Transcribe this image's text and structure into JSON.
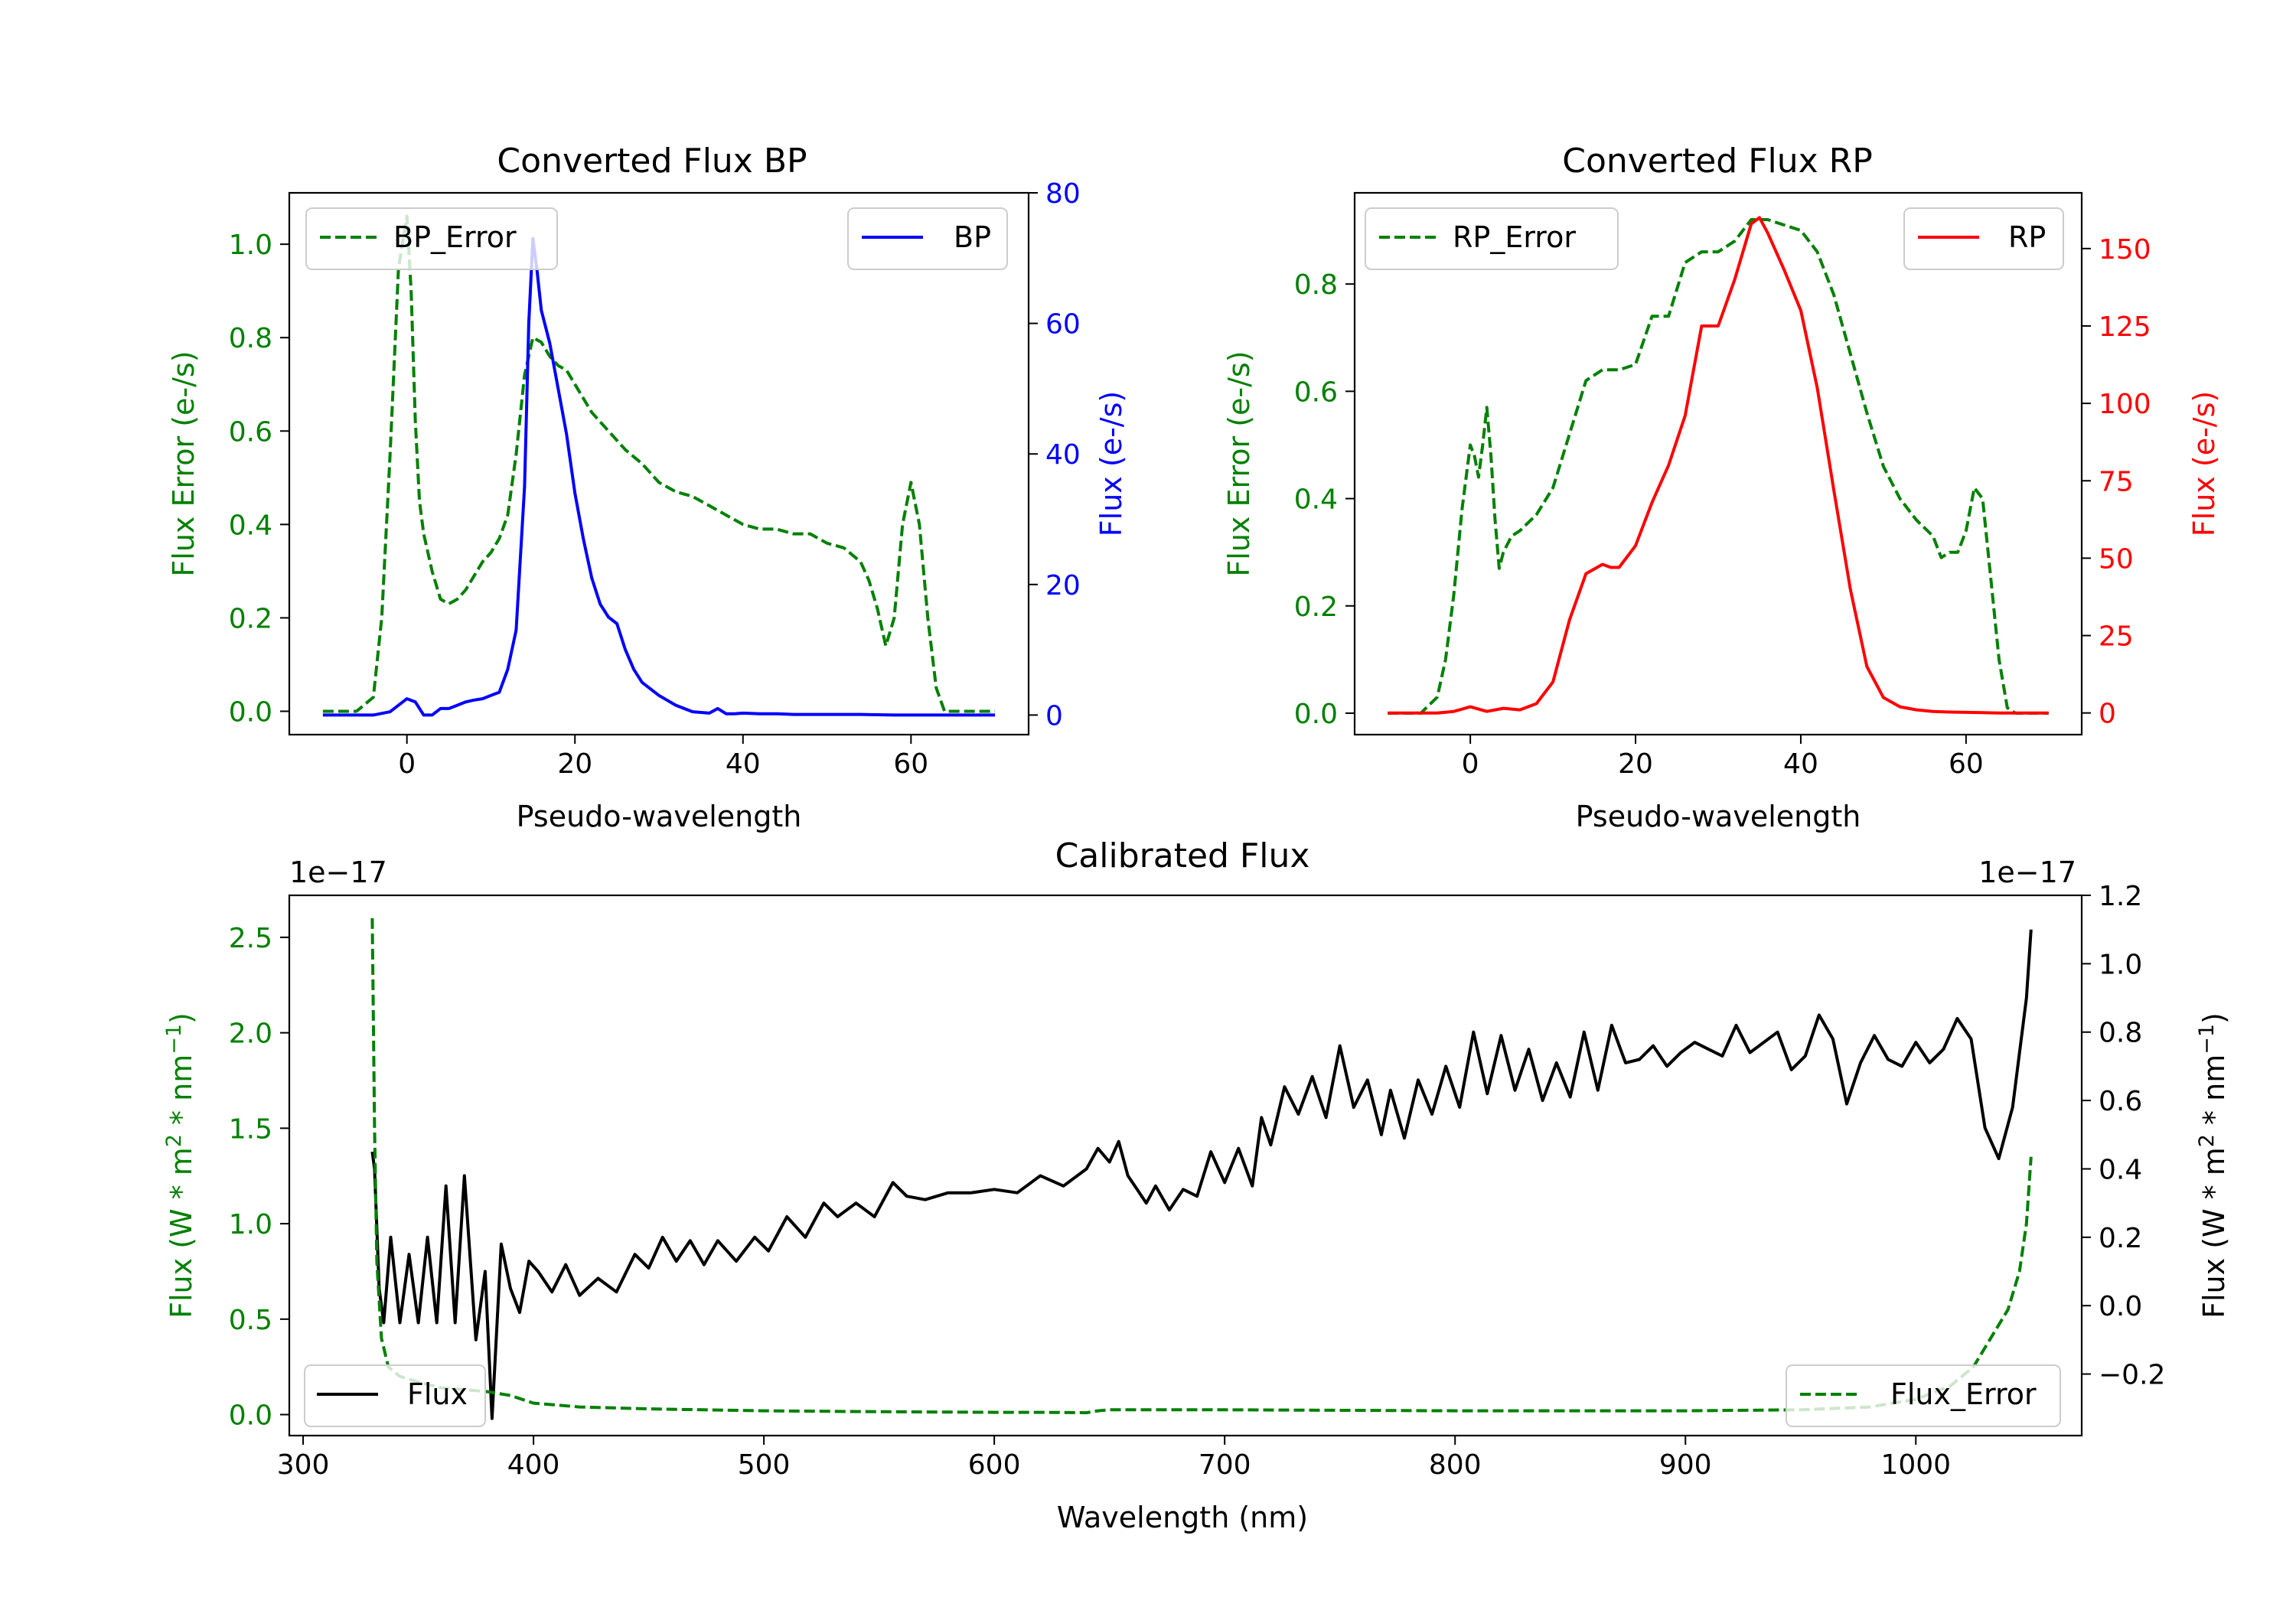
{
  "colors": {
    "green": "#008000",
    "blue": "#0000ff",
    "red": "#ff0000",
    "black": "#000000"
  },
  "chart_data": [
    {
      "id": "bp",
      "type": "line",
      "title": "Converted Flux BP",
      "xlabel": "Pseudo-wavelength",
      "ylabel_left": "Flux Error (e-/s)",
      "ylabel_right": "Flux (e-/s)",
      "xlim": [
        -14,
        74
      ],
      "ylim_left": [
        -0.05,
        1.11
      ],
      "ylim_right": [
        -3,
        80
      ],
      "xticks": [
        0,
        20,
        40,
        60
      ],
      "yticks_left": [
        0.0,
        0.2,
        0.4,
        0.6,
        0.8,
        1.0
      ],
      "ytick_labels_left": [
        "0.0",
        "0.2",
        "0.4",
        "0.6",
        "0.8",
        "1.0"
      ],
      "yticks_right": [
        0,
        20,
        40,
        60,
        80
      ],
      "ytick_labels_right": [
        "0",
        "20",
        "40",
        "60",
        "80"
      ],
      "legend_left_position": "upper-left",
      "legend_right_position": "upper-right",
      "series": [
        {
          "name": "BP_Error",
          "axis": "left",
          "style": "dashed",
          "color": "#008000",
          "x": [
            -10,
            -6,
            -4,
            -3,
            -2,
            -1,
            0,
            0.5,
            1,
            1.5,
            2,
            3,
            4,
            5,
            6,
            7,
            8,
            9,
            10,
            11,
            12,
            13,
            14,
            15,
            16,
            17,
            18,
            19,
            20,
            22,
            24,
            26,
            28,
            30,
            32,
            34,
            36,
            38,
            40,
            42,
            44,
            46,
            48,
            50,
            52,
            54,
            55,
            56,
            57,
            58,
            59,
            60,
            61,
            62,
            63,
            64,
            65,
            66,
            67,
            68,
            69,
            70
          ],
          "y": [
            0,
            0,
            0.03,
            0.2,
            0.55,
            0.95,
            1.06,
            0.9,
            0.62,
            0.45,
            0.38,
            0.3,
            0.24,
            0.23,
            0.24,
            0.26,
            0.29,
            0.32,
            0.34,
            0.37,
            0.42,
            0.55,
            0.72,
            0.8,
            0.79,
            0.76,
            0.74,
            0.73,
            0.7,
            0.64,
            0.6,
            0.56,
            0.53,
            0.49,
            0.47,
            0.46,
            0.44,
            0.42,
            0.4,
            0.39,
            0.39,
            0.38,
            0.38,
            0.36,
            0.35,
            0.32,
            0.28,
            0.22,
            0.14,
            0.2,
            0.4,
            0.49,
            0.4,
            0.2,
            0.05,
            0,
            0,
            0,
            0,
            0,
            0,
            0
          ]
        },
        {
          "name": "BP",
          "axis": "right",
          "style": "solid",
          "color": "#0000ff",
          "x": [
            -10,
            -8,
            -6,
            -4,
            -2,
            -1,
            0,
            1,
            2,
            3,
            4,
            5,
            6,
            7,
            8,
            9,
            10,
            11,
            12,
            13,
            14,
            14.5,
            15,
            15.5,
            16,
            17,
            18,
            19,
            20,
            21,
            22,
            23,
            24,
            25,
            26,
            27,
            28,
            29,
            30,
            32,
            34,
            36,
            37,
            38,
            39,
            40,
            42,
            44,
            46,
            48,
            50,
            52,
            54,
            56,
            58,
            60,
            62,
            64,
            66,
            68,
            70
          ],
          "y": [
            0,
            0,
            0,
            0,
            0.5,
            1.5,
            2.5,
            2,
            0,
            0,
            1,
            1,
            1.5,
            2,
            2.3,
            2.5,
            3,
            3.5,
            7,
            13,
            35,
            60,
            73,
            68,
            62,
            57,
            50,
            43,
            34,
            27,
            21,
            17,
            15,
            14,
            10,
            7,
            5,
            4,
            3,
            1.5,
            0.5,
            0.3,
            1,
            0.2,
            0.2,
            0.3,
            0.2,
            0.2,
            0.1,
            0.1,
            0.1,
            0.1,
            0.1,
            0.05,
            0,
            0,
            0,
            0,
            0,
            0,
            0
          ]
        }
      ]
    },
    {
      "id": "rp",
      "type": "line",
      "title": "Converted Flux RP",
      "xlabel": "Pseudo-wavelength",
      "ylabel_left": "Flux Error (e-/s)",
      "ylabel_right": "Flux (e-/s)",
      "xlim": [
        -14,
        74
      ],
      "ylim_left": [
        -0.04,
        0.97
      ],
      "ylim_right": [
        -7,
        168
      ],
      "xticks": [
        0,
        20,
        40,
        60
      ],
      "yticks_left": [
        0.0,
        0.2,
        0.4,
        0.6,
        0.8
      ],
      "ytick_labels_left": [
        "0.0",
        "0.2",
        "0.4",
        "0.6",
        "0.8"
      ],
      "yticks_right": [
        0,
        25,
        50,
        75,
        100,
        125,
        150
      ],
      "ytick_labels_right": [
        "0",
        "25",
        "50",
        "75",
        "100",
        "125",
        "150"
      ],
      "legend_left_position": "upper-left",
      "legend_right_position": "upper-right",
      "series": [
        {
          "name": "RP_Error",
          "axis": "left",
          "style": "dashed",
          "color": "#008000",
          "x": [
            -10,
            -6,
            -4,
            -3,
            -2,
            -1,
            0,
            0.5,
            1,
            1.5,
            2,
            2.5,
            3,
            3.5,
            4,
            5,
            6,
            8,
            10,
            12,
            14,
            16,
            18,
            20,
            22,
            24,
            26,
            28,
            30,
            32,
            34,
            36,
            38,
            40,
            42,
            44,
            46,
            48,
            50,
            52,
            54,
            56,
            57,
            58,
            59,
            60,
            61,
            62,
            63,
            64,
            65,
            66,
            67,
            68,
            70
          ],
          "y": [
            0,
            0,
            0.03,
            0.1,
            0.22,
            0.38,
            0.5,
            0.48,
            0.44,
            0.5,
            0.57,
            0.48,
            0.36,
            0.27,
            0.3,
            0.33,
            0.34,
            0.37,
            0.42,
            0.52,
            0.62,
            0.64,
            0.64,
            0.65,
            0.74,
            0.74,
            0.84,
            0.86,
            0.86,
            0.88,
            0.92,
            0.92,
            0.91,
            0.9,
            0.86,
            0.78,
            0.67,
            0.56,
            0.46,
            0.4,
            0.36,
            0.33,
            0.29,
            0.3,
            0.3,
            0.34,
            0.42,
            0.4,
            0.25,
            0.1,
            0.01,
            0,
            0,
            0,
            0
          ]
        },
        {
          "name": "RP",
          "axis": "right",
          "style": "solid",
          "color": "#ff0000",
          "x": [
            -10,
            -6,
            -4,
            -2,
            0,
            2,
            4,
            6,
            8,
            10,
            12,
            14,
            16,
            17,
            18,
            20,
            22,
            24,
            26,
            28,
            30,
            32,
            34,
            35,
            36,
            38,
            40,
            42,
            44,
            46,
            48,
            50,
            52,
            54,
            56,
            58,
            60,
            62,
            64,
            66,
            68,
            70
          ],
          "y": [
            0,
            0,
            0,
            0.5,
            2,
            0.5,
            1.5,
            1,
            3,
            10,
            30,
            45,
            48,
            47,
            47,
            54,
            68,
            80,
            96,
            125,
            125,
            140,
            158,
            160,
            155,
            143,
            130,
            105,
            72,
            40,
            15,
            5,
            2,
            1,
            0.5,
            0.3,
            0.2,
            0.1,
            0,
            0,
            0,
            0
          ]
        }
      ]
    },
    {
      "id": "cal",
      "type": "line",
      "title": "Calibrated Flux",
      "xlabel": "Wavelength (nm)",
      "ylabel_left_base": "Flux (W * m",
      "ylabel_left_sup1": "2",
      "ylabel_left_mid": " * nm",
      "ylabel_left_sup2": "−1",
      "ylabel_left_end": ")",
      "ylabel_right_base": "Flux (W * m",
      "ylabel_right_sup1": "2",
      "ylabel_right_mid": " * nm",
      "ylabel_right_sup2": "−1",
      "ylabel_right_end": ")",
      "offset_left": "1e−17",
      "offset_right": "1e−17",
      "xlim": [
        294,
        1072
      ],
      "ylim_left": [
        -0.11,
        2.72
      ],
      "ylim_right": [
        -0.38,
        1.2
      ],
      "xticks": [
        300,
        400,
        500,
        600,
        700,
        800,
        900,
        1000
      ],
      "yticks_left": [
        0.0,
        0.5,
        1.0,
        1.5,
        2.0,
        2.5
      ],
      "ytick_labels_left": [
        "0.0",
        "0.5",
        "1.0",
        "1.5",
        "2.0",
        "2.5"
      ],
      "yticks_right": [
        -0.2,
        0.0,
        0.2,
        0.4,
        0.6,
        0.8,
        1.0,
        1.2
      ],
      "ytick_labels_right": [
        "−0.2",
        "0.0",
        "0.2",
        "0.4",
        "0.6",
        "0.8",
        "1.0",
        "1.2"
      ],
      "legend_left_position": "lower-left",
      "legend_right_position": "lower-right",
      "series": [
        {
          "name": "Flux",
          "axis": "right",
          "style": "solid",
          "color": "#000000",
          "x": [
            330,
            331,
            333,
            335,
            338,
            342,
            346,
            350,
            354,
            358,
            362,
            366,
            370,
            375,
            379,
            382,
            386,
            390,
            394,
            398,
            402,
            408,
            414,
            420,
            428,
            436,
            444,
            450,
            456,
            462,
            468,
            474,
            480,
            488,
            496,
            502,
            510,
            518,
            526,
            532,
            540,
            548,
            556,
            562,
            570,
            580,
            590,
            600,
            610,
            620,
            630,
            640,
            645,
            650,
            654,
            658,
            662,
            666,
            670,
            676,
            682,
            688,
            694,
            700,
            706,
            712,
            716,
            720,
            726,
            732,
            738,
            744,
            750,
            756,
            762,
            768,
            772,
            778,
            784,
            790,
            796,
            802,
            808,
            814,
            820,
            826,
            832,
            838,
            844,
            850,
            856,
            862,
            868,
            874,
            880,
            886,
            892,
            898,
            904,
            910,
            916,
            922,
            928,
            934,
            940,
            946,
            952,
            958,
            964,
            970,
            976,
            982,
            988,
            994,
            1000,
            1006,
            1012,
            1018,
            1024,
            1030,
            1036,
            1042,
            1048
          ],
          "y": [
            0.45,
            0.4,
            0.05,
            -0.05,
            0.2,
            -0.05,
            0.15,
            -0.05,
            0.2,
            -0.05,
            0.35,
            -0.05,
            0.38,
            -0.1,
            0.1,
            -0.33,
            0.18,
            0.05,
            -0.02,
            0.13,
            0.1,
            0.04,
            0.12,
            0.03,
            0.08,
            0.04,
            0.15,
            0.11,
            0.2,
            0.13,
            0.19,
            0.12,
            0.19,
            0.13,
            0.2,
            0.16,
            0.26,
            0.2,
            0.3,
            0.26,
            0.3,
            0.26,
            0.36,
            0.32,
            0.31,
            0.33,
            0.33,
            0.34,
            0.33,
            0.38,
            0.35,
            0.4,
            0.46,
            0.42,
            0.48,
            0.38,
            0.34,
            0.3,
            0.35,
            0.28,
            0.34,
            0.32,
            0.45,
            0.36,
            0.46,
            0.35,
            0.55,
            0.47,
            0.64,
            0.56,
            0.67,
            0.55,
            0.76,
            0.58,
            0.66,
            0.5,
            0.63,
            0.49,
            0.66,
            0.56,
            0.7,
            0.58,
            0.8,
            0.62,
            0.79,
            0.63,
            0.75,
            0.6,
            0.71,
            0.61,
            0.8,
            0.63,
            0.82,
            0.71,
            0.72,
            0.76,
            0.7,
            0.74,
            0.77,
            0.75,
            0.73,
            0.82,
            0.74,
            0.77,
            0.8,
            0.69,
            0.73,
            0.85,
            0.78,
            0.59,
            0.71,
            0.79,
            0.72,
            0.7,
            0.77,
            0.71,
            0.75,
            0.84,
            0.78,
            0.52,
            0.43,
            0.58,
            0.9
          ],
          "x_ext": [
            1050
          ],
          "y_ext": [
            1.1
          ]
        },
        {
          "name": "Flux_Error",
          "axis": "left",
          "style": "dashed",
          "color": "#008000",
          "x": [
            330,
            331,
            332,
            334,
            337,
            342,
            350,
            360,
            370,
            380,
            390,
            400,
            420,
            450,
            500,
            550,
            600,
            620,
            640,
            645,
            650,
            700,
            800,
            900,
            950,
            980,
            1000,
            1015,
            1025,
            1030,
            1035,
            1040,
            1045,
            1048,
            1050
          ],
          "y": [
            2.6,
            1.5,
            0.8,
            0.4,
            0.25,
            0.2,
            0.17,
            0.14,
            0.13,
            0.12,
            0.1,
            0.06,
            0.04,
            0.03,
            0.02,
            0.015,
            0.012,
            0.012,
            0.01,
            0.02,
            0.025,
            0.025,
            0.02,
            0.02,
            0.025,
            0.04,
            0.08,
            0.15,
            0.25,
            0.35,
            0.45,
            0.55,
            0.75,
            1.0,
            1.35
          ]
        }
      ]
    }
  ]
}
